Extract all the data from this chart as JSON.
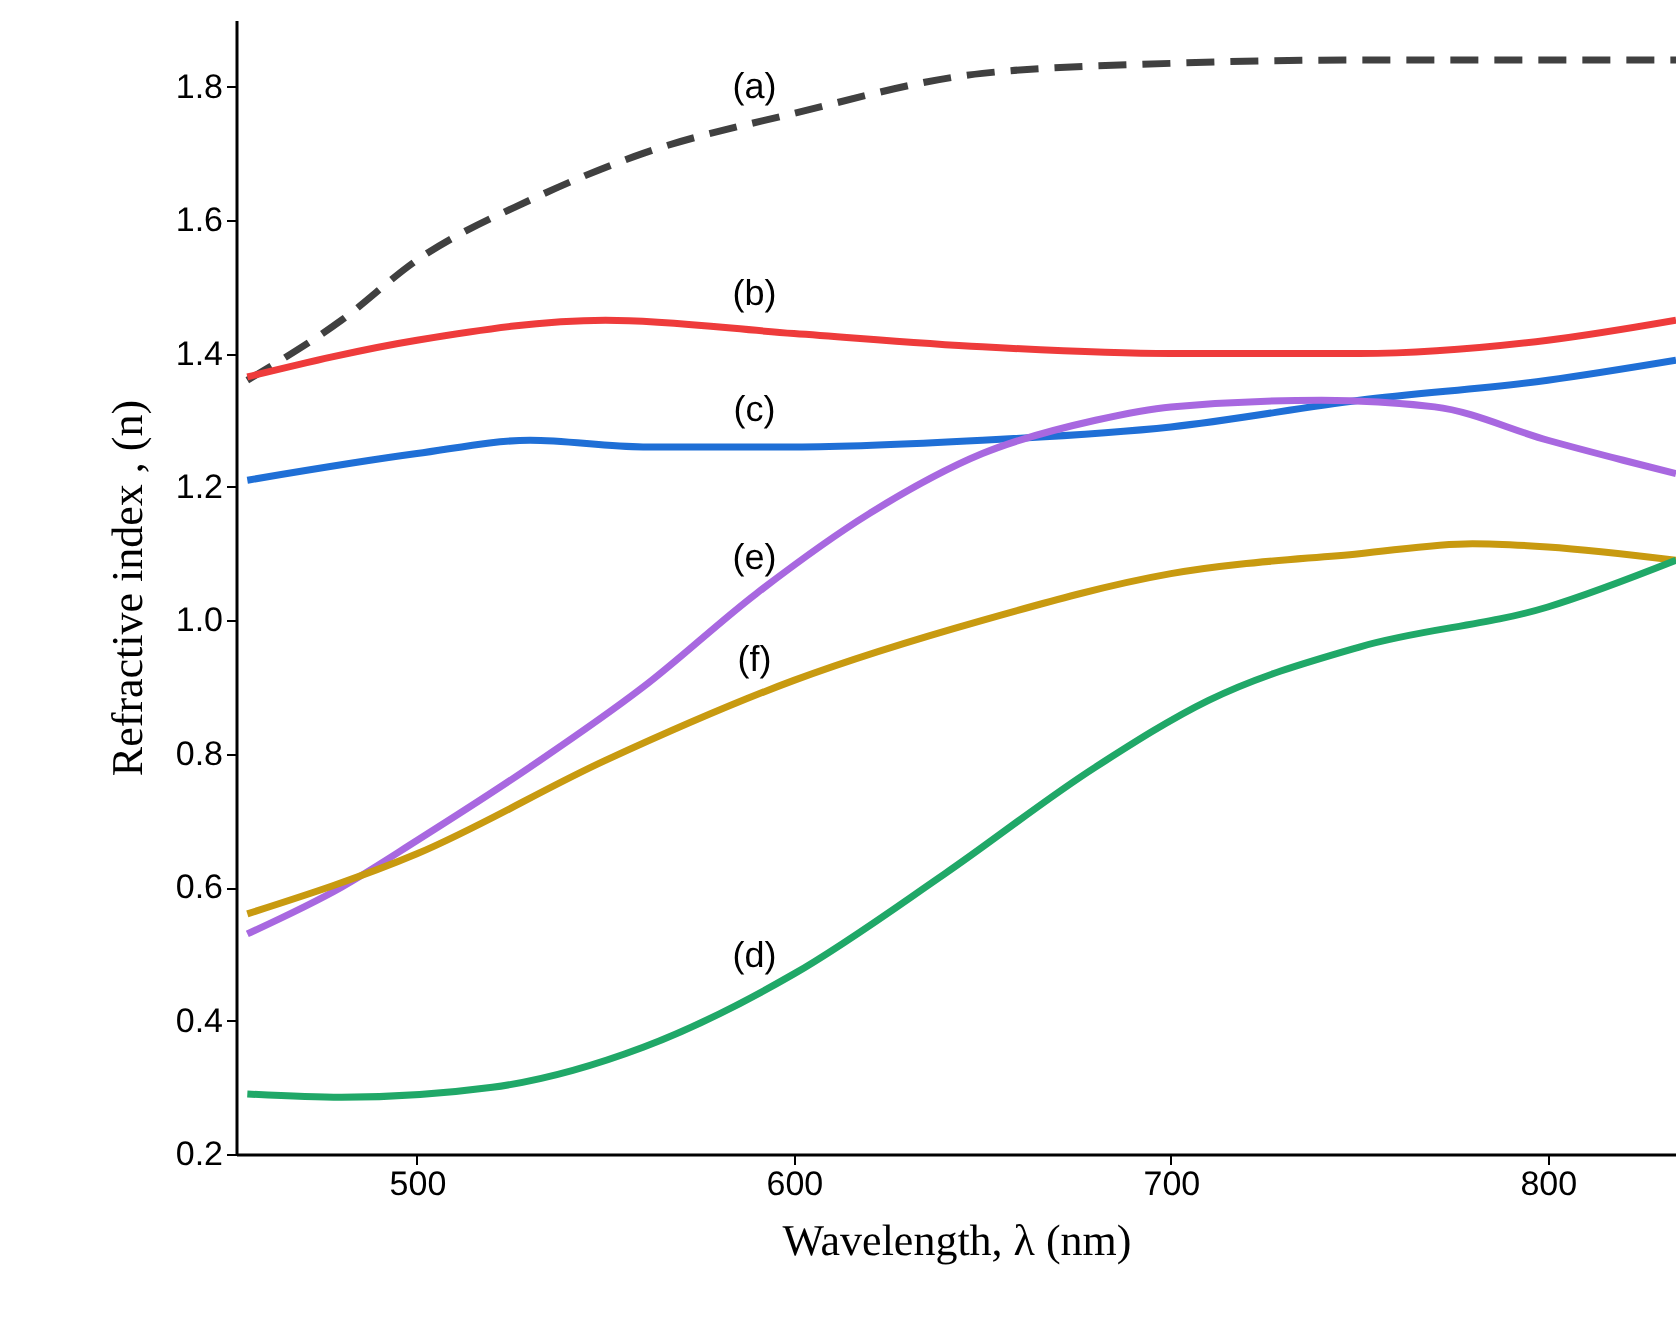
{
  "chart_data": {
    "type": "line",
    "xlabel": "Wavelength, λ (nm)",
    "ylabel": "Refractive index , (n)",
    "xlim": [
      452,
      834
    ],
    "xticks": [
      500,
      600,
      700,
      800
    ],
    "ylim": [
      0.2,
      1.9
    ],
    "yticks": [
      0.2,
      0.4,
      0.6,
      0.8,
      {
        "value": 1,
        "label": "1.0"
      },
      1.2,
      1.4,
      1.6,
      1.8
    ],
    "grid": false,
    "marker": "none",
    "series": [
      {
        "color": "#404040",
        "line_style": "dashed",
        "x": [
          455,
          480,
          500,
          530,
          560,
          600,
          650,
          700,
          750,
          800,
          834
        ],
        "values": [
          1.36,
          1.45,
          1.54,
          1.63,
          1.7,
          1.76,
          1.82,
          1.835,
          1.84,
          1.84,
          1.84
        ]
      },
      {
        "color": "#ee3b3b",
        "line_style": "solid",
        "x": [
          455,
          500,
          550,
          600,
          650,
          700,
          750,
          800,
          834
        ],
        "values": [
          1.365,
          1.42,
          1.45,
          1.43,
          1.41,
          1.4,
          1.4,
          1.42,
          1.45
        ]
      },
      {
        "color": "#1f6fd6",
        "line_style": "solid",
        "x": [
          455,
          500,
          530,
          560,
          600,
          650,
          700,
          750,
          800,
          834
        ],
        "values": [
          1.21,
          1.25,
          1.27,
          1.26,
          1.26,
          1.27,
          1.29,
          1.33,
          1.36,
          1.39
        ]
      },
      {
        "color": "#a868e0",
        "line_style": "solid",
        "x": [
          455,
          480,
          500,
          530,
          560,
          590,
          620,
          650,
          680,
          700,
          740,
          770,
          800,
          820,
          834
        ],
        "values": [
          0.53,
          0.6,
          0.67,
          0.78,
          0.9,
          1.04,
          1.16,
          1.25,
          1.3,
          1.32,
          1.33,
          1.32,
          1.27,
          1.24,
          1.22
        ]
      },
      {
        "color": "#c89a10",
        "line_style": "solid",
        "x": [
          455,
          500,
          550,
          600,
          650,
          700,
          750,
          780,
          800,
          834
        ],
        "values": [
          0.56,
          0.65,
          0.79,
          0.91,
          1.0,
          1.07,
          1.1,
          1.115,
          1.11,
          1.09
        ]
      },
      {
        "color": "#20a868",
        "line_style": "solid",
        "x": [
          455,
          480,
          520,
          560,
          600,
          640,
          680,
          710,
          750,
          800,
          834
        ],
        "values": [
          0.29,
          0.285,
          0.3,
          0.36,
          0.47,
          0.62,
          0.78,
          0.88,
          0.96,
          1.02,
          1.09
        ]
      }
    ],
    "annotations": [
      "(a)",
      "(b)",
      "(c)",
      "(e)",
      "(f)",
      "(d)"
    ]
  }
}
